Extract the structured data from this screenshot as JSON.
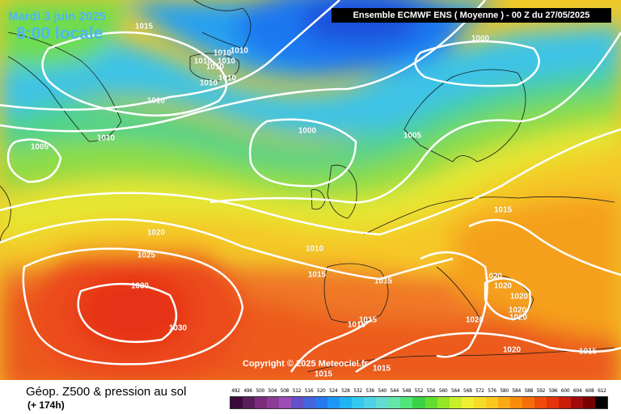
{
  "header": {
    "date": "Mardi 3 juin 2025",
    "time": "8:00 locale",
    "title": "Ensemble ECMWF ENS  ( Moyenne )  -  00 Z du 27/05/2025"
  },
  "isobar_labels": [
    "1015",
    "1010",
    "1010",
    "1010",
    "1010",
    "1010",
    "1010",
    "1010",
    "1010",
    "1005",
    "1010",
    "1000",
    "1005",
    "1000",
    "1015",
    "1020",
    "1025",
    "1030",
    "1030",
    "1010",
    "1015",
    "1015",
    "1015",
    "1015",
    "1020",
    "1020",
    "1020",
    "1020",
    "1020",
    "1020",
    "1020",
    "1015",
    "1015",
    "1015"
  ],
  "copyright": "Copyright © 2025 Meteociel.fr",
  "footer": {
    "title": "Géop. Z500 & pression au sol",
    "subtitle": "(+ 174h)"
  },
  "legend": {
    "ticks": [
      "492",
      "496",
      "500",
      "504",
      "508",
      "512",
      "516",
      "520",
      "524",
      "528",
      "532",
      "536",
      "540",
      "544",
      "548",
      "552",
      "556",
      "560",
      "564",
      "568",
      "572",
      "576",
      "580",
      "584",
      "588",
      "592",
      "596",
      "600",
      "604",
      "608",
      "612"
    ],
    "colors": [
      "#3c0a3c",
      "#5a1e5a",
      "#7b2c7b",
      "#8c3c96",
      "#9c4cb4",
      "#6450c8",
      "#4664dc",
      "#2878f0",
      "#1e96f5",
      "#1eb4f5",
      "#32c8f0",
      "#50d2e6",
      "#64dcd2",
      "#64e6aa",
      "#50e678",
      "#3cd246",
      "#64dc32",
      "#96e628",
      "#c8f028",
      "#f0f032",
      "#f5dc28",
      "#fac81e",
      "#faaa14",
      "#fa8c0a",
      "#f56e0a",
      "#f04b0a",
      "#e6320a",
      "#c81e0a",
      "#a00a0a",
      "#780000",
      "#000000"
    ]
  }
}
